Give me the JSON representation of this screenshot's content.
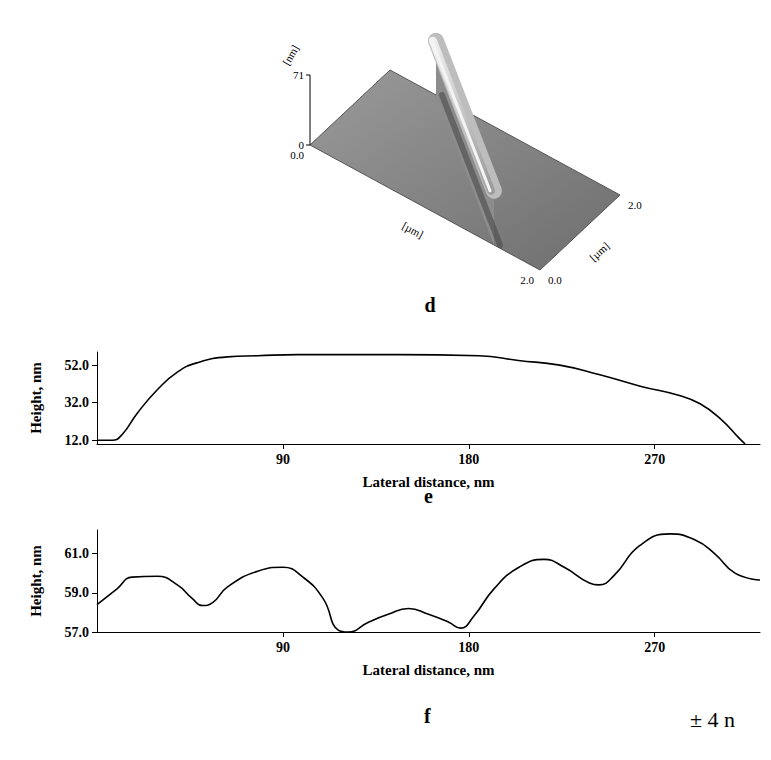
{
  "footer": "± 4 n",
  "chart_data": [
    {
      "type": "surface3d",
      "panel": "d",
      "x_label": "[µm]",
      "y_label": "[µm]",
      "z_label": "[nm]",
      "xlim": [
        0,
        2
      ],
      "ylim": [
        0,
        2
      ],
      "zlim": [
        0,
        71
      ],
      "xticks": [
        {
          "value": 0,
          "label": "0.0"
        },
        {
          "value": 2,
          "label": "2.0"
        }
      ],
      "yticks": [
        {
          "value": 0,
          "label": "0.0"
        },
        {
          "value": 2,
          "label": "2.0"
        }
      ],
      "zticks": [
        0,
        71
      ],
      "ridge": {
        "x": [
          0.4,
          1.6
        ],
        "y": [
          2,
          0
        ],
        "z": [
          55,
          55
        ]
      }
    },
    {
      "type": "line",
      "panel": "e",
      "x_label": "Lateral distance, nm",
      "y_label": "Height, nm",
      "x": [
        0,
        7.3,
        12.2,
        19.5,
        29.2,
        38.9,
        48.6,
        63.2,
        77.8,
        97.3,
        146,
        184.9,
        204,
        224,
        243,
        263,
        282,
        292,
        302,
        311,
        313.8
      ],
      "values": [
        12,
        12,
        15.1,
        26.4,
        38.9,
        48.3,
        53.3,
        56.4,
        57,
        57.6,
        57.6,
        57,
        54.5,
        52,
        47,
        40.8,
        35.8,
        31.4,
        23.3,
        13,
        10
      ],
      "color": "#000000",
      "xlim": [
        0,
        321
      ],
      "xticks": [
        90,
        180,
        270
      ],
      "ylim": [
        10,
        59
      ],
      "yticks": [
        {
          "value": 12,
          "label": "12.0"
        },
        {
          "value": 32,
          "label": "32.0"
        },
        {
          "value": 52,
          "label": "52.0"
        }
      ],
      "grid": false
    },
    {
      "type": "line",
      "panel": "f",
      "x_label": "Lateral distance, nm",
      "y_label": "Height, nm",
      "x": [
        0,
        9.7,
        17,
        29.2,
        38.9,
        46.2,
        51,
        56,
        63.2,
        77.8,
        90,
        99.7,
        109.5,
        116.8,
        121.6,
        131.4,
        141,
        150.8,
        160.5,
        170.3,
        176,
        182.4,
        192.2,
        204.3,
        216.5,
        226.2,
        238.4,
        243,
        250.5,
        262.7,
        277.3,
        289.4,
        299,
        308.9,
        321
      ],
      "values": [
        58.4,
        59.2,
        59.8,
        59.84,
        59.4,
        58.7,
        58.35,
        58.5,
        59.3,
        60.1,
        60.3,
        59.8,
        58.7,
        57.1,
        57,
        57.5,
        57.9,
        58.2,
        57.9,
        57.5,
        57.2,
        57.8,
        59.2,
        60.3,
        60.7,
        60.3,
        59.5,
        59.4,
        59.9,
        61.4,
        62,
        61.7,
        61,
        60,
        59.65
      ],
      "color": "#000000",
      "xlim": [
        0,
        321
      ],
      "xticks": [
        90,
        180,
        270
      ],
      "ylim": [
        57,
        62.2
      ],
      "yticks": [
        {
          "value": 57,
          "label": "57.0"
        },
        {
          "value": 59,
          "label": "59.0"
        },
        {
          "value": 61,
          "label": "61.0"
        }
      ],
      "grid": false
    }
  ]
}
